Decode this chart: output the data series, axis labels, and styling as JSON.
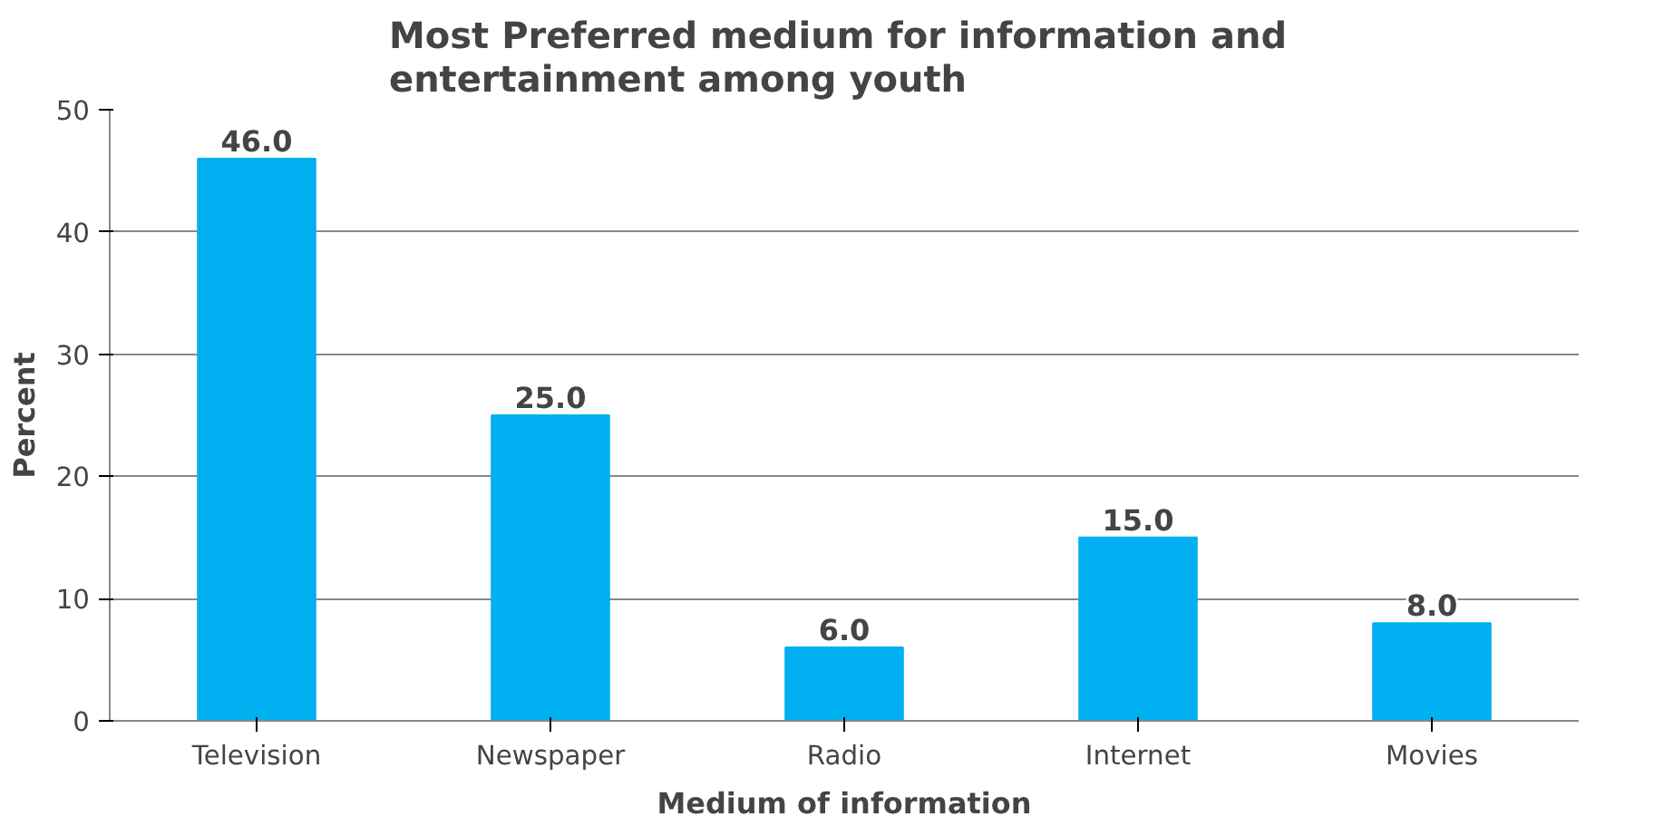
{
  "chart_data": {
    "type": "bar",
    "title": "Most Preferred medium  for information and\nentertainment among youth",
    "xlabel": "Medium of information",
    "ylabel": "Percent",
    "categories": [
      "Television",
      "Newspaper",
      "Radio",
      "Internet",
      "Movies"
    ],
    "values": [
      46,
      25,
      6,
      15,
      8
    ],
    "value_labels": [
      "46.0",
      "25.0",
      "6.0",
      "15.0",
      "8.0"
    ],
    "color": "#00b0f0",
    "ylim": [
      0,
      50
    ],
    "yticks": [
      0,
      10,
      20,
      30,
      40,
      50
    ],
    "grid": "y"
  }
}
